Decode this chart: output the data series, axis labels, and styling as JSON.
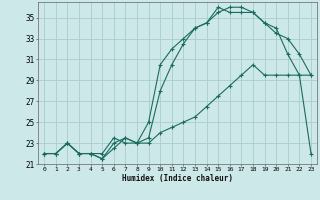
{
  "title": "",
  "xlabel": "Humidex (Indice chaleur)",
  "bg_color": "#cce8e8",
  "grid_color": "#aacccc",
  "line_color": "#1a6b5e",
  "xlim": [
    -0.5,
    23.5
  ],
  "ylim": [
    21.0,
    36.5
  ],
  "xticks": [
    0,
    1,
    2,
    3,
    4,
    5,
    6,
    7,
    8,
    9,
    10,
    11,
    12,
    13,
    14,
    15,
    16,
    17,
    18,
    19,
    20,
    21,
    22,
    23
  ],
  "yticks": [
    21,
    23,
    25,
    27,
    29,
    31,
    33,
    35
  ],
  "line1_x": [
    0,
    1,
    2,
    3,
    4,
    5,
    6,
    7,
    8,
    9,
    10,
    11,
    12,
    13,
    14,
    15,
    16,
    17,
    18,
    19,
    20,
    21,
    22,
    23
  ],
  "line1_y": [
    22.0,
    22.0,
    23.0,
    22.0,
    22.0,
    22.0,
    23.5,
    23.0,
    23.0,
    25.0,
    30.5,
    32.0,
    33.0,
    34.0,
    34.5,
    35.5,
    36.0,
    36.0,
    35.5,
    34.5,
    33.5,
    33.0,
    31.5,
    29.5
  ],
  "line2_x": [
    0,
    1,
    2,
    3,
    4,
    5,
    6,
    7,
    8,
    9,
    10,
    11,
    12,
    13,
    14,
    15,
    16,
    17,
    18,
    19,
    20,
    21,
    22,
    23
  ],
  "line2_y": [
    22.0,
    22.0,
    23.0,
    22.0,
    22.0,
    21.5,
    23.0,
    23.5,
    23.0,
    23.5,
    28.0,
    30.5,
    32.5,
    34.0,
    34.5,
    36.0,
    35.5,
    35.5,
    35.5,
    34.5,
    34.0,
    31.5,
    29.5,
    22.0
  ],
  "line3_x": [
    0,
    1,
    2,
    3,
    4,
    5,
    6,
    7,
    8,
    9,
    10,
    11,
    12,
    13,
    14,
    15,
    16,
    17,
    18,
    19,
    20,
    21,
    22,
    23
  ],
  "line3_y": [
    22.0,
    22.0,
    23.0,
    22.0,
    22.0,
    21.5,
    22.5,
    23.5,
    23.0,
    23.0,
    24.0,
    24.5,
    25.0,
    25.5,
    26.5,
    27.5,
    28.5,
    29.5,
    30.5,
    29.5,
    29.5,
    29.5,
    29.5,
    29.5
  ]
}
